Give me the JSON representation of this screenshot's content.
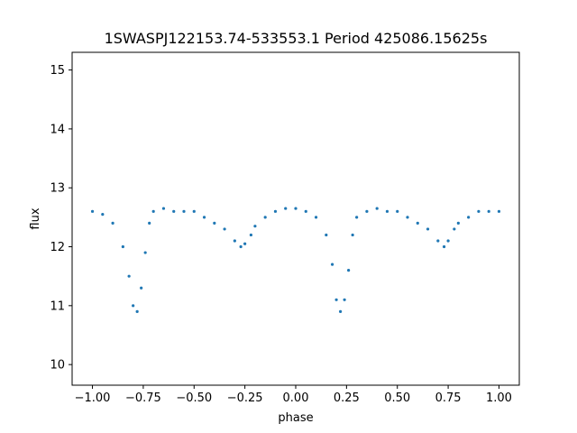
{
  "chart_data": {
    "type": "scatter",
    "title": "1SWASPJ122153.74-533553.1 Period 425086.15625s",
    "xlabel": "phase",
    "ylabel": "flux",
    "xlim": [
      -1.1,
      1.1
    ],
    "ylim": [
      9.65,
      15.3
    ],
    "x_ticks": [
      -1.0,
      -0.75,
      -0.5,
      -0.25,
      0.0,
      0.25,
      0.5,
      0.75,
      1.0
    ],
    "x_tick_labels": [
      "−1.00",
      "−0.75",
      "−0.50",
      "−0.25",
      "0.00",
      "0.25",
      "0.50",
      "0.75",
      "1.00"
    ],
    "y_ticks": [
      10,
      11,
      12,
      13,
      14,
      15
    ],
    "y_tick_labels": [
      "10",
      "11",
      "12",
      "13",
      "14",
      "15"
    ],
    "point_color": "#1f77b4",
    "grid": false,
    "series": [
      {
        "x": [
          -1.0,
          -0.95,
          -0.9,
          -0.85,
          -0.82,
          -0.8,
          -0.78,
          -0.76,
          -0.74,
          -0.72,
          -0.7,
          -0.65,
          -0.6,
          -0.55,
          -0.5,
          -0.45,
          -0.4,
          -0.35,
          -0.3,
          -0.27,
          -0.25,
          -0.22,
          -0.2,
          -0.15,
          -0.1,
          -0.05,
          0.0,
          0.05,
          0.1,
          0.15,
          0.18,
          0.2,
          0.22,
          0.24,
          0.26,
          0.28,
          0.3,
          0.35,
          0.4,
          0.45,
          0.5,
          0.55,
          0.6,
          0.65,
          0.7,
          0.73,
          0.75,
          0.78,
          0.8,
          0.85,
          0.9,
          0.95,
          1.0
        ],
        "y": [
          12.6,
          12.55,
          12.4,
          12.0,
          11.5,
          11.0,
          10.9,
          11.3,
          11.9,
          12.4,
          12.6,
          12.65,
          12.6,
          12.6,
          12.6,
          12.5,
          12.4,
          12.3,
          12.1,
          12.0,
          12.05,
          12.2,
          12.35,
          12.5,
          12.6,
          12.65,
          12.65,
          12.6,
          12.5,
          12.2,
          11.7,
          11.1,
          10.9,
          11.1,
          11.6,
          12.2,
          12.5,
          12.6,
          12.65,
          12.6,
          12.6,
          12.5,
          12.4,
          12.3,
          12.1,
          12.0,
          12.1,
          12.3,
          12.4,
          12.5,
          12.6,
          12.6,
          12.6
        ]
      }
    ]
  }
}
